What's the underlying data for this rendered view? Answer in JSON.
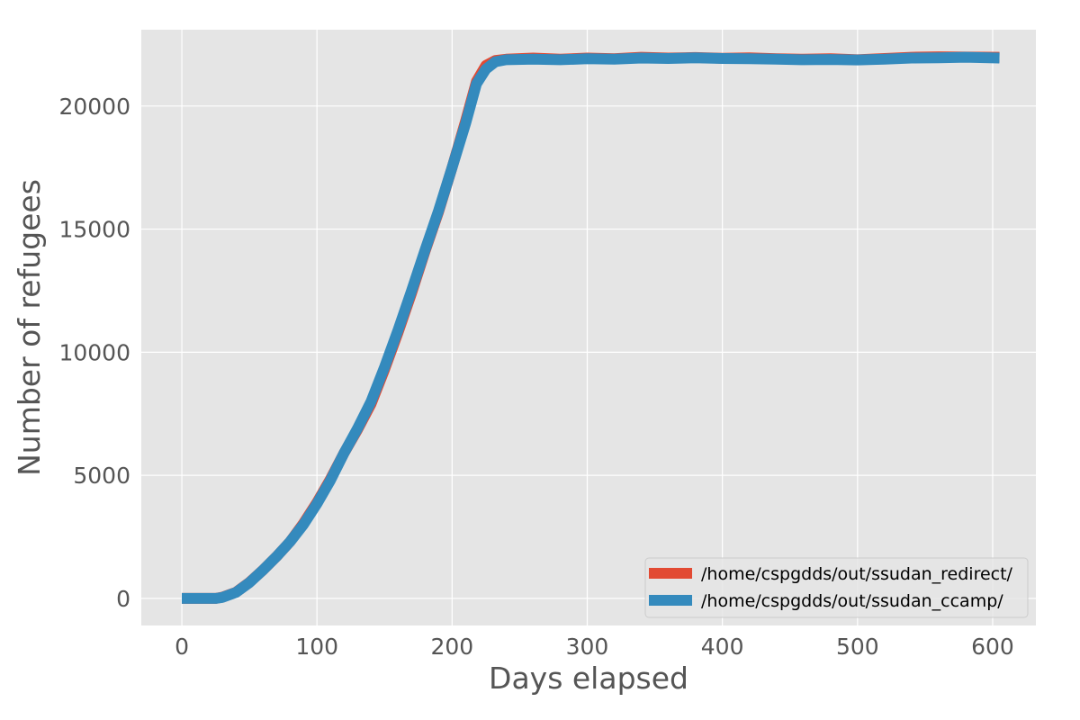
{
  "chart_data": {
    "type": "line",
    "title": "",
    "xlabel": "Days elapsed",
    "ylabel": "Number of refugees",
    "xlim": [
      -30,
      632
    ],
    "ylim": [
      -1100,
      23100
    ],
    "xticks": [
      0,
      100,
      200,
      300,
      400,
      500,
      600
    ],
    "yticks": [
      0,
      5000,
      10000,
      15000,
      20000
    ],
    "grid": true,
    "legend_position": "lower-right",
    "background": "#e5e5e5",
    "series": [
      {
        "name": "/home/cspgdds/out/ssudan_redirect/",
        "color": "#e24a33",
        "points": [
          [
            0,
            0
          ],
          [
            25,
            0
          ],
          [
            30,
            50
          ],
          [
            40,
            250
          ],
          [
            50,
            650
          ],
          [
            60,
            1150
          ],
          [
            70,
            1700
          ],
          [
            80,
            2300
          ],
          [
            90,
            3050
          ],
          [
            100,
            3900
          ],
          [
            110,
            4850
          ],
          [
            120,
            5900
          ],
          [
            130,
            6850
          ],
          [
            140,
            7900
          ],
          [
            150,
            9300
          ],
          [
            160,
            10800
          ],
          [
            170,
            12400
          ],
          [
            180,
            14100
          ],
          [
            190,
            15700
          ],
          [
            200,
            17500
          ],
          [
            210,
            19400
          ],
          [
            218,
            21000
          ],
          [
            225,
            21650
          ],
          [
            232,
            21850
          ],
          [
            240,
            21900
          ],
          [
            260,
            21950
          ],
          [
            280,
            21900
          ],
          [
            300,
            21950
          ],
          [
            320,
            21920
          ],
          [
            340,
            21980
          ],
          [
            360,
            21950
          ],
          [
            380,
            21970
          ],
          [
            400,
            21940
          ],
          [
            420,
            21960
          ],
          [
            440,
            21920
          ],
          [
            460,
            21900
          ],
          [
            480,
            21920
          ],
          [
            500,
            21880
          ],
          [
            520,
            21930
          ],
          [
            540,
            21980
          ],
          [
            560,
            22000
          ],
          [
            580,
            21990
          ],
          [
            605,
            21980
          ]
        ]
      },
      {
        "name": "/home/cspgdds/out/ssudan_ccamp/",
        "color": "#348abd",
        "points": [
          [
            0,
            0
          ],
          [
            25,
            0
          ],
          [
            30,
            40
          ],
          [
            40,
            240
          ],
          [
            50,
            640
          ],
          [
            60,
            1150
          ],
          [
            70,
            1700
          ],
          [
            80,
            2300
          ],
          [
            90,
            3000
          ],
          [
            100,
            3850
          ],
          [
            110,
            4800
          ],
          [
            120,
            5900
          ],
          [
            130,
            6900
          ],
          [
            140,
            8000
          ],
          [
            150,
            9400
          ],
          [
            160,
            10900
          ],
          [
            170,
            12500
          ],
          [
            180,
            14150
          ],
          [
            190,
            15750
          ],
          [
            200,
            17500
          ],
          [
            210,
            19300
          ],
          [
            218,
            20900
          ],
          [
            225,
            21500
          ],
          [
            232,
            21800
          ],
          [
            240,
            21880
          ],
          [
            260,
            21900
          ],
          [
            280,
            21880
          ],
          [
            300,
            21920
          ],
          [
            320,
            21900
          ],
          [
            340,
            21950
          ],
          [
            360,
            21930
          ],
          [
            380,
            21960
          ],
          [
            400,
            21930
          ],
          [
            420,
            21920
          ],
          [
            440,
            21900
          ],
          [
            460,
            21880
          ],
          [
            480,
            21890
          ],
          [
            500,
            21870
          ],
          [
            520,
            21900
          ],
          [
            540,
            21950
          ],
          [
            560,
            21960
          ],
          [
            580,
            21980
          ],
          [
            605,
            21950
          ]
        ]
      }
    ]
  }
}
